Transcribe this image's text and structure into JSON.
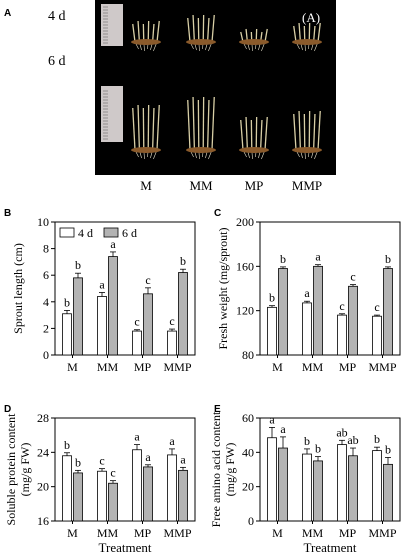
{
  "photo": {
    "panel_letter": "A",
    "tag": "(A)",
    "day_labels": [
      "4 d",
      "6 d"
    ],
    "treatments": [
      "M",
      "MM",
      "MP",
      "MMP"
    ]
  },
  "colors": {
    "day4": "#ffffff",
    "day6": "#b3b3b3",
    "photo_bg": "#000000",
    "sprout": "#d8cfa6",
    "root": "#8a5a2b"
  },
  "chart_data": [
    {
      "panel": "B",
      "type": "bar",
      "categories": [
        "M",
        "MM",
        "MP",
        "MMP"
      ],
      "series": [
        {
          "name": "4 d",
          "values": [
            3.1,
            4.4,
            1.8,
            1.8
          ],
          "errors": [
            0.25,
            0.3,
            0.1,
            0.15
          ],
          "letters": [
            "b",
            "a",
            "c",
            "c"
          ]
        },
        {
          "name": "6 d",
          "values": [
            5.8,
            7.4,
            4.6,
            6.2
          ],
          "errors": [
            0.35,
            0.35,
            0.45,
            0.25
          ],
          "letters": [
            "b",
            "a",
            "c",
            "b"
          ]
        }
      ],
      "ylabel": "Sprout length (cm)",
      "xlabel": "",
      "ylim": [
        0,
        10
      ],
      "yticks": [
        0,
        2,
        4,
        6,
        8,
        10
      ],
      "legend": "top-left"
    },
    {
      "panel": "C",
      "type": "bar",
      "categories": [
        "M",
        "MM",
        "MP",
        "MMP"
      ],
      "series": [
        {
          "name": "4 d",
          "values": [
            123,
            127,
            116,
            115
          ],
          "errors": [
            1.5,
            1.5,
            1.2,
            1.0
          ],
          "letters": [
            "b",
            "a",
            "c",
            "c"
          ]
        },
        {
          "name": "6 d",
          "values": [
            158,
            160,
            142,
            158
          ],
          "errors": [
            1.5,
            1.5,
            1.5,
            1.5
          ],
          "letters": [
            "b",
            "a",
            "c",
            "b"
          ]
        }
      ],
      "ylabel": "Fresh weight (mg/sprout)",
      "xlabel": "",
      "ylim": [
        80,
        200
      ],
      "yticks": [
        80,
        120,
        160,
        200
      ]
    },
    {
      "panel": "D",
      "type": "bar",
      "categories": [
        "M",
        "MM",
        "MP",
        "MMP"
      ],
      "series": [
        {
          "name": "4 d",
          "values": [
            23.6,
            21.8,
            24.3,
            23.7
          ],
          "errors": [
            0.35,
            0.3,
            0.6,
            0.7
          ],
          "letters": [
            "b",
            "c",
            "a",
            "a"
          ]
        },
        {
          "name": "6 d",
          "values": [
            21.6,
            20.4,
            22.3,
            21.9
          ],
          "errors": [
            0.3,
            0.3,
            0.25,
            0.35
          ],
          "letters": [
            "b",
            "c",
            "a",
            "a"
          ]
        }
      ],
      "ylabel": "Soluble protein content",
      "ylabel2": "(mg/g FW)",
      "xlabel": "Treatment",
      "ylim": [
        16,
        28
      ],
      "yticks": [
        16,
        20,
        24,
        28
      ]
    },
    {
      "panel": "E",
      "type": "bar",
      "categories": [
        "M",
        "MM",
        "MP",
        "MMP"
      ],
      "series": [
        {
          "name": "4 d",
          "values": [
            48.5,
            39.0,
            44.5,
            41.0
          ],
          "errors": [
            6.0,
            3.0,
            2.5,
            2.0
          ],
          "letters": [
            "a",
            "b",
            "ab",
            "b"
          ]
        },
        {
          "name": "6 d",
          "values": [
            42.5,
            35.0,
            38.0,
            33.0
          ],
          "errors": [
            6.5,
            2.5,
            4.5,
            4.0
          ],
          "letters": [
            "a",
            "b",
            "ab",
            "b"
          ]
        }
      ],
      "ylabel": "Free amino acid content",
      "ylabel2": "(mg/g FW)",
      "xlabel": "Treatment",
      "ylim": [
        0,
        60
      ],
      "yticks": [
        0,
        20,
        40,
        60
      ]
    }
  ]
}
